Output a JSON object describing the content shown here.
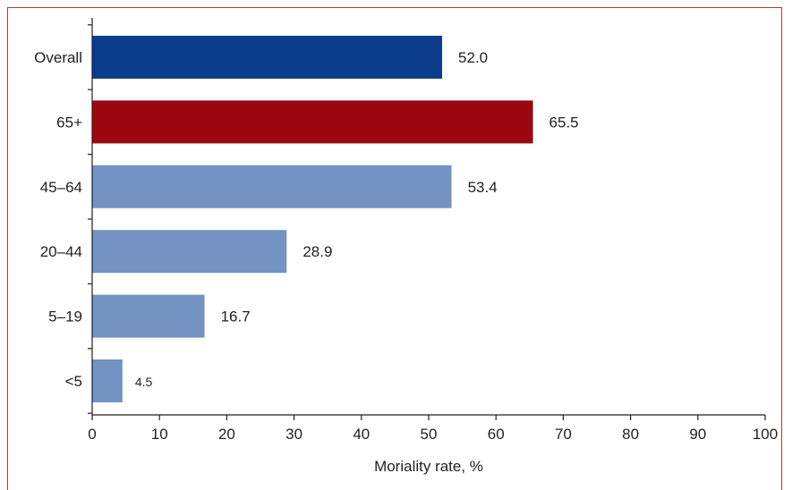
{
  "chart_data": {
    "type": "bar",
    "orientation": "horizontal",
    "categories": [
      "Overall",
      "65+",
      "45–64",
      "20–44",
      "5–19",
      "<5"
    ],
    "values": [
      52.0,
      65.5,
      53.4,
      28.9,
      16.7,
      4.5
    ],
    "value_labels": [
      "52.0",
      "65.5",
      "53.4",
      "28.9",
      "16.7",
      "4.5"
    ],
    "bar_colors": [
      "#0b3d8c",
      "#9b0812",
      "#7394c3",
      "#7394c3",
      "#7394c3",
      "#7394c3"
    ],
    "xlabel": "Moriality rate, %",
    "ylabel": "",
    "title": "",
    "xlim": [
      0,
      100
    ],
    "xticks": [
      0,
      10,
      20,
      30,
      40,
      50,
      60,
      70,
      80,
      90,
      100
    ],
    "xtick_labels": [
      "0",
      "10",
      "20",
      "30",
      "40",
      "50",
      "60",
      "70",
      "80",
      "90",
      "100"
    ],
    "grid": false,
    "legend": "none"
  },
  "colors": {
    "frame_border": "#b23a3a",
    "text": "#231f20",
    "axis": "#231f20"
  }
}
